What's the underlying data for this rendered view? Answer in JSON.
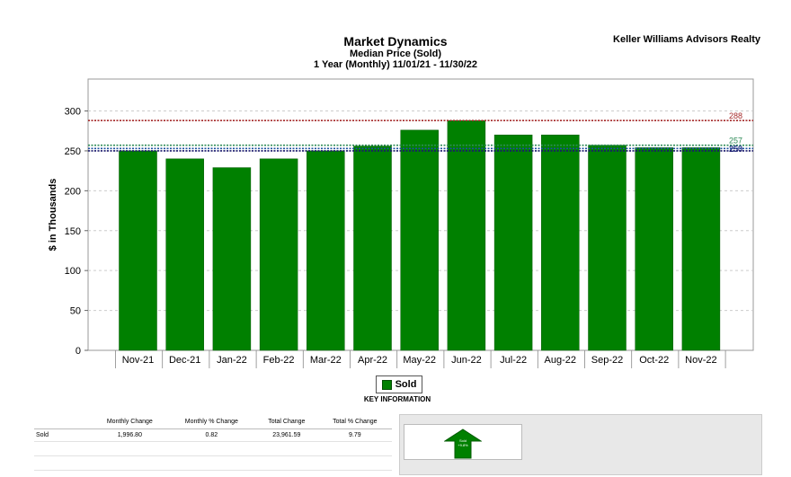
{
  "header": {
    "title": "Market Dynamics",
    "subtitle1": "Median Price (Sold)",
    "subtitle2": "1 Year (Monthly) 11/01/21 - 11/30/22",
    "company": "Keller Williams Advisors Realty"
  },
  "chart_data": {
    "type": "bar",
    "ylabel": "$ in Thousands",
    "ylim": [
      0,
      340
    ],
    "yticks": [
      0,
      50,
      100,
      150,
      200,
      250,
      300
    ],
    "grid": true,
    "categories": [
      "Nov-21",
      "Dec-21",
      "Jan-22",
      "Feb-22",
      "Mar-22",
      "Apr-22",
      "May-22",
      "Jun-22",
      "Jul-22",
      "Aug-22",
      "Sep-22",
      "Oct-22",
      "Nov-22"
    ],
    "series": [
      {
        "name": "Sold",
        "values": [
          250,
          240,
          229,
          240,
          250,
          256,
          276,
          288,
          270,
          270,
          257,
          254,
          254
        ]
      }
    ],
    "reference_lines": [
      {
        "value": 288,
        "label": "288",
        "color": "#a52a2a"
      },
      {
        "value": 257,
        "label": "257",
        "color": "#2e8b57"
      },
      {
        "value": 253,
        "label": "253",
        "color": "#1e4fa0"
      },
      {
        "value": 250,
        "label": "250",
        "color": "#1a1a6e"
      }
    ],
    "colors": {
      "bar": "#008000",
      "bar_edge": "#005a00"
    }
  },
  "legend": {
    "label": "Sold",
    "key_title": "KEY INFORMATION"
  },
  "stats": {
    "headers": [
      "",
      "Monthly Change",
      "Monthly % Change",
      "Total Change",
      "Total % Change"
    ],
    "rows": [
      [
        "Sold",
        "1,996.80",
        "0.82",
        "23,961.59",
        "9.79"
      ]
    ]
  },
  "indicator": {
    "label": "Sold",
    "change": "+9.8%"
  }
}
